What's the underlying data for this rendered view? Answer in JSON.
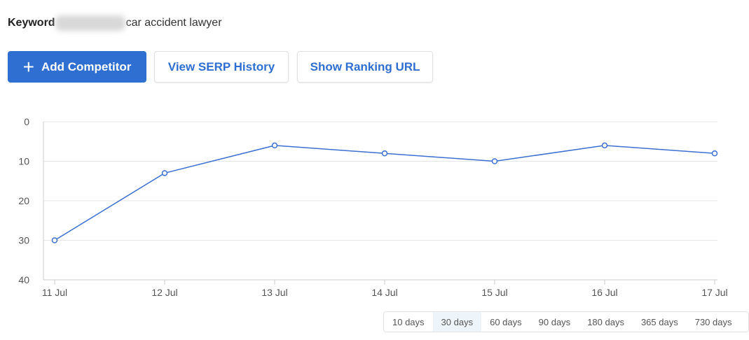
{
  "keyword": {
    "label": "Keyword",
    "value": "car accident lawyer"
  },
  "buttons": {
    "add_competitor": "Add Competitor",
    "view_serp_history": "View SERP History",
    "show_ranking_url": "Show Ranking URL"
  },
  "colors": {
    "accent": "#2f6fd1",
    "line": "#3b6fd0"
  },
  "chart_data": {
    "type": "line",
    "categories": [
      "11 Jul",
      "12 Jul",
      "13 Jul",
      "14 Jul",
      "15 Jul",
      "16 Jul",
      "17 Jul"
    ],
    "values": [
      30,
      13,
      6,
      8,
      10,
      6,
      8
    ],
    "y_ticks": [
      "0",
      "10",
      "20",
      "30",
      "40"
    ],
    "ylim": [
      0,
      40
    ],
    "y_inverted": true,
    "grid": true
  },
  "ranges": [
    {
      "label": "10 days",
      "active": false
    },
    {
      "label": "30 days",
      "active": true
    },
    {
      "label": "60 days",
      "active": false
    },
    {
      "label": "90 days",
      "active": false
    },
    {
      "label": "180 days",
      "active": false
    },
    {
      "label": "365 days",
      "active": false
    },
    {
      "label": "730 days",
      "active": false
    }
  ]
}
